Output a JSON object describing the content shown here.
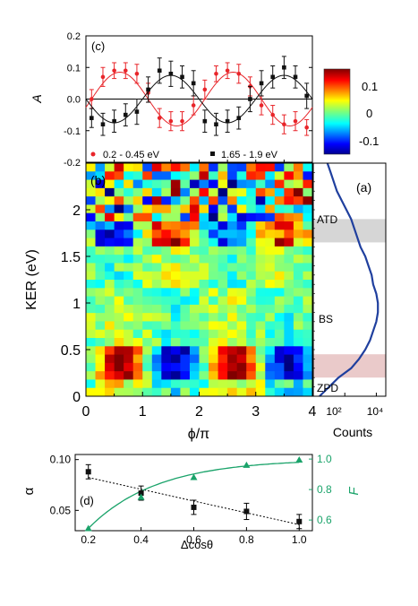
{
  "chart_data": [
    {
      "panel": "(c)",
      "type": "scatter",
      "ylabel": "A",
      "xlim": [
        0,
        4
      ],
      "ylim": [
        -0.2,
        0.2
      ],
      "yticks": [
        -0.2,
        -0.1,
        0.0,
        0.1,
        0.2
      ],
      "series": [
        {
          "name": "0.2 - 0.45 eV",
          "color": "#e8252a",
          "x": [
            0.1,
            0.3,
            0.5,
            0.7,
            0.9,
            1.1,
            1.3,
            1.5,
            1.7,
            1.9,
            2.1,
            2.3,
            2.5,
            2.7,
            2.9,
            3.1,
            3.3,
            3.5,
            3.7,
            3.9
          ],
          "y": [
            0.0,
            0.07,
            0.09,
            0.09,
            0.08,
            0.02,
            -0.06,
            -0.07,
            -0.07,
            -0.02,
            0.03,
            0.08,
            0.09,
            0.08,
            0.04,
            -0.02,
            -0.05,
            -0.08,
            -0.07,
            -0.09
          ],
          "err": [
            0.03,
            0.03,
            0.025,
            0.025,
            0.03,
            0.03,
            0.03,
            0.03,
            0.03,
            0.03,
            0.03,
            0.025,
            0.025,
            0.03,
            0.03,
            0.03,
            0.03,
            0.03,
            0.03,
            0.025
          ],
          "fit": {
            "amp": 0.085,
            "period": 2.0,
            "phase_peak": 0.6
          }
        },
        {
          "name": "1.65 - 1.9 eV",
          "color": "#111111",
          "x": [
            0.1,
            0.3,
            0.5,
            0.7,
            0.9,
            1.1,
            1.3,
            1.5,
            1.7,
            1.9,
            2.1,
            2.3,
            2.5,
            2.7,
            2.9,
            3.1,
            3.3,
            3.5,
            3.7,
            3.9
          ],
          "y": [
            -0.06,
            -0.08,
            -0.07,
            -0.05,
            -0.04,
            0.03,
            0.09,
            0.08,
            0.07,
            0.05,
            -0.07,
            -0.08,
            -0.07,
            -0.06,
            0.0,
            0.05,
            0.07,
            0.1,
            0.07,
            0.01
          ],
          "err": [
            0.03,
            0.035,
            0.035,
            0.035,
            0.04,
            0.04,
            0.04,
            0.04,
            0.035,
            0.04,
            0.035,
            0.035,
            0.035,
            0.035,
            0.04,
            0.04,
            0.035,
            0.035,
            0.035,
            0.04
          ],
          "fit": {
            "amp": 0.075,
            "period": 2.0,
            "phase_peak": 1.5
          }
        }
      ]
    },
    {
      "panel": "(b)",
      "type": "heatmap",
      "xlabel": "ϕ/π",
      "ylabel": "KER (eV)",
      "xlim": [
        0,
        4
      ],
      "ylim": [
        0,
        2.5
      ],
      "xticks": [
        0,
        1,
        2,
        3,
        4
      ],
      "yticks": [
        0,
        0.5,
        1,
        1.5,
        2
      ],
      "ytick_labels": [
        "0",
        "0.5",
        "1",
        "1.5",
        "2"
      ],
      "grid_cols": 24,
      "grid_rows": 28,
      "zlim": [
        -0.15,
        0.15
      ],
      "colorbar": {
        "ticks": [
          0.1,
          0,
          -0.1
        ],
        "tick_labels": [
          "0.1",
          "0",
          "-0.1"
        ]
      }
    },
    {
      "panel": "(a)",
      "type": "line",
      "xlabel": "Counts",
      "x_scale": "log",
      "xticks": [
        "10²",
        "10⁴"
      ],
      "ylim": [
        0,
        2.5
      ],
      "color": "#1f3f9e",
      "log_counts": [
        0.4,
        1.0,
        1.6,
        2.4,
        2.9,
        3.3,
        3.6,
        3.8,
        4.0,
        4.1,
        4.1,
        4.0,
        3.8,
        3.7,
        3.5,
        3.3,
        3.0,
        2.8,
        2.6,
        2.4,
        2.1,
        1.8,
        1.5,
        1.3,
        1.1,
        0.9
      ],
      "ker": [
        0.0,
        0.1,
        0.2,
        0.3,
        0.4,
        0.5,
        0.6,
        0.7,
        0.8,
        0.9,
        1.0,
        1.1,
        1.2,
        1.3,
        1.4,
        1.5,
        1.6,
        1.7,
        1.8,
        1.9,
        2.0,
        2.1,
        2.2,
        2.3,
        2.4,
        2.5
      ],
      "annotations": [
        {
          "text": "ATD",
          "ker": 1.95
        },
        {
          "text": "BS",
          "ker": 0.85
        },
        {
          "text": "ZPD",
          "ker": 0.08
        }
      ],
      "bands": [
        {
          "from": 1.65,
          "to": 1.9,
          "color": "#c8c8c8"
        },
        {
          "from": 0.2,
          "to": 0.45,
          "color": "#e3b8b8"
        }
      ]
    },
    {
      "panel": "(d)",
      "type": "scatter",
      "xlabel": "Δcosθ",
      "ylabel": "α",
      "y2label": "F",
      "x": [
        0.2,
        0.4,
        0.6,
        0.8,
        1.0
      ],
      "xlim": [
        0.15,
        1.05
      ],
      "ylim": [
        0.03,
        0.105
      ],
      "y2lim": [
        0.53,
        1.03
      ],
      "xticks": [
        0.2,
        0.4,
        0.6,
        0.8,
        1.0
      ],
      "yticks": [
        0.05,
        0.1
      ],
      "ytick_labels": [
        "0.05",
        "0.10"
      ],
      "y2ticks": [
        0.6,
        0.8,
        1.0
      ],
      "y2tick_labels": [
        "0.6",
        "0.8",
        "1.0"
      ],
      "series": [
        {
          "name": "α",
          "color": "#111111",
          "values": [
            0.088,
            0.067,
            0.053,
            0.049,
            0.039
          ],
          "err": [
            0.007,
            0.007,
            0.007,
            0.008,
            0.007
          ],
          "fit": "linear"
        },
        {
          "name": "F",
          "color": "#1aa36a",
          "values": [
            0.545,
            0.75,
            0.88,
            0.96,
            0.995
          ],
          "fit": "smooth"
        }
      ]
    }
  ],
  "labels": {
    "panel_c": "(c)",
    "panel_b": "(b)",
    "panel_a": "(a)",
    "panel_d": "(d)",
    "axis_A": "A",
    "axis_ker": "KER (eV)",
    "axis_phi": "ϕ/π",
    "axis_counts": "Counts",
    "axis_alpha": "α",
    "axis_F": "F",
    "axis_dcos": "Δcosθ",
    "ann_atd": "ATD",
    "ann_bs": "BS",
    "ann_zpd": "ZPD",
    "legend_red": "0.2 - 0.45 eV",
    "legend_black": "1.65 - 1.9 eV",
    "cb_top": "0.1",
    "cb_mid": "0",
    "cb_bot": "-0.1",
    "counts_tick_a": "10²",
    "counts_tick_b": "10⁴"
  }
}
